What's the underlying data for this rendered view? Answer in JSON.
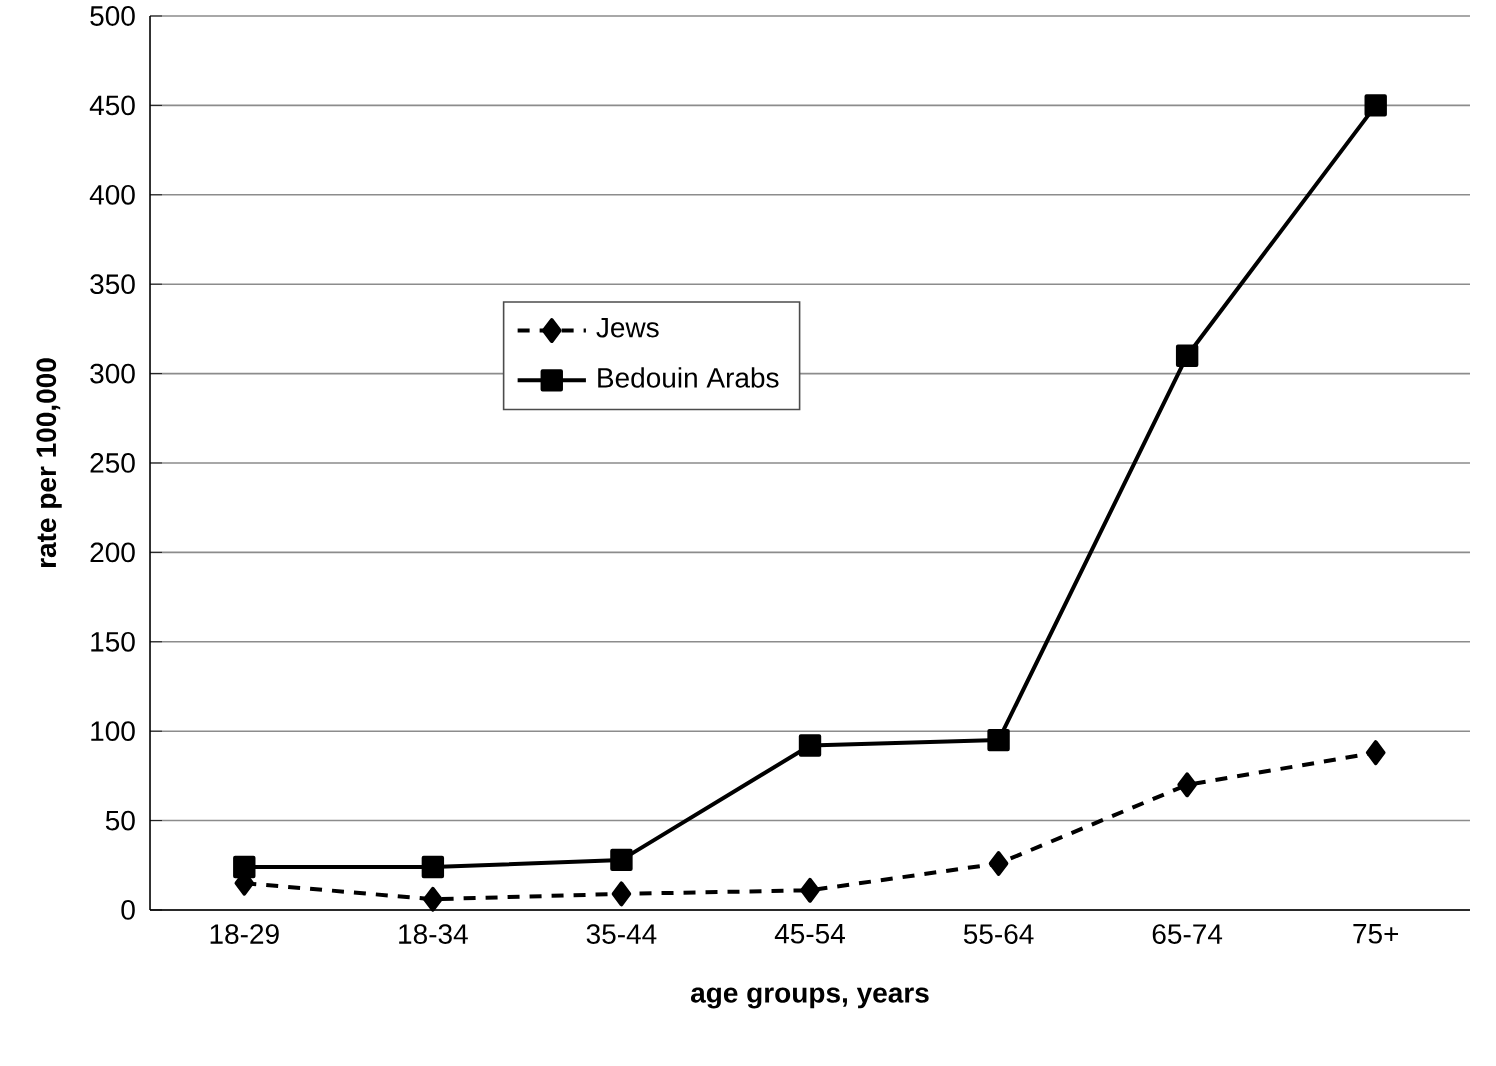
{
  "chart_data": {
    "type": "line",
    "xlabel": "age groups, years",
    "ylabel": "rate per 100,000",
    "categories": [
      "18-29",
      "18-34",
      "35-44",
      "45-54",
      "55-64",
      "65-74",
      "75+"
    ],
    "series": [
      {
        "name": "Jews",
        "color": "#000000",
        "marker": "diamond",
        "line_style": "dashed",
        "values": [
          15,
          6,
          9,
          11,
          26,
          70,
          88
        ]
      },
      {
        "name": "Bedouin Arabs",
        "color": "#000000",
        "marker": "square",
        "line_style": "solid",
        "values": [
          24,
          24,
          28,
          92,
          95,
          310,
          450
        ]
      }
    ],
    "ylim": [
      0,
      500
    ],
    "yticks": [
      0,
      50,
      100,
      150,
      200,
      250,
      300,
      350,
      400,
      450,
      500
    ],
    "grid": "y",
    "legend": "center"
  }
}
